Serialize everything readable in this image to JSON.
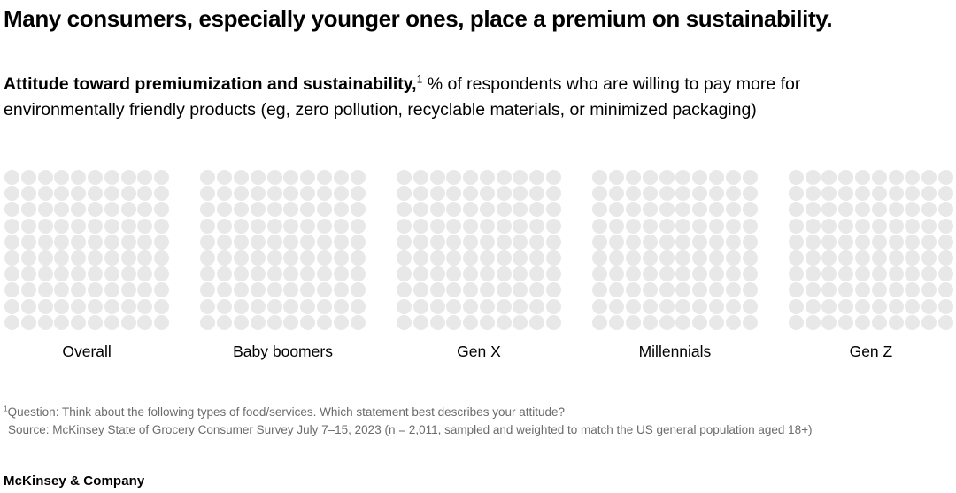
{
  "title": "Many consumers, especially younger ones, place a premium on sustainability.",
  "subtitle": {
    "bold_lead": "Attitude toward premiumization and sustainability,",
    "footnote_marker": "1",
    "rest": " % of respondents who are willing to pay more for environmentally friendly products (eg, zero pollution, recyclable materials, or minimized packaging)"
  },
  "chart_data": {
    "type": "waffle",
    "title": "Attitude toward premiumization and sustainability",
    "unit_label": "% of respondents who are willing to pay more for environmentally friendly products",
    "categories": [
      "Overall",
      "Baby boomers",
      "Gen X",
      "Millennials",
      "Gen Z"
    ],
    "rows": 10,
    "cols": 10,
    "dots_per_group": 100,
    "highlighted_counts": [
      0,
      0,
      0,
      0,
      0
    ],
    "base_dot_color": "#e8e8e8",
    "legend": "none"
  },
  "footnotes": {
    "marker": "1",
    "question": "Question: Think about the following types of food/services. Which statement best describes your attitude?",
    "source": "Source: McKinsey State of Grocery Consumer Survey July 7–15, 2023 (n = 2,011, sampled and weighted to match the US general population aged 18+)"
  },
  "branding": {
    "logo_text": "McKinsey & Company"
  }
}
